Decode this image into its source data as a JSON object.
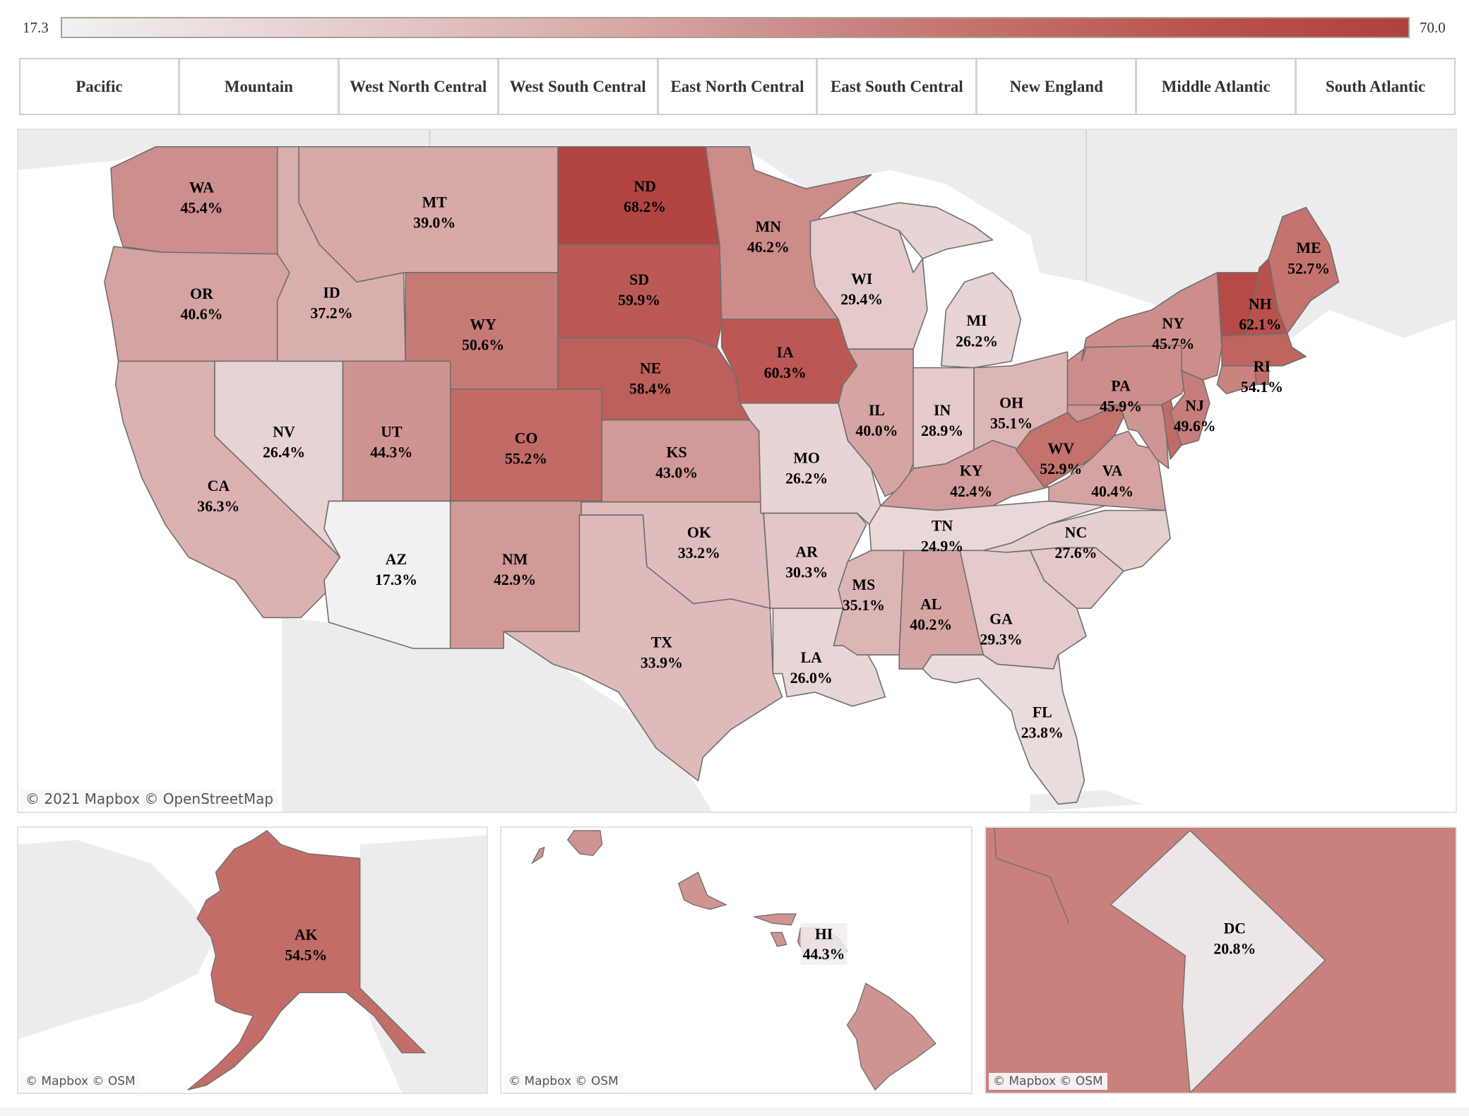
{
  "legend": {
    "min_label": "17.3",
    "max_label": "70.0",
    "min_value": 17.3,
    "max_value": 70.0,
    "color_low": "#f1f1f1",
    "color_high": "#b0413e"
  },
  "tabs": [
    {
      "label": "Pacific"
    },
    {
      "label": "Mountain"
    },
    {
      "label": "West North Central"
    },
    {
      "label": "West South Central"
    },
    {
      "label": "East North Central"
    },
    {
      "label": "East South Central"
    },
    {
      "label": "New England"
    },
    {
      "label": "Middle Atlantic"
    },
    {
      "label": "South Atlantic"
    }
  ],
  "main_map": {
    "attribution": "© 2021 Mapbox  © OpenStreetMap"
  },
  "inset_maps": {
    "alaska": {
      "attribution": "© Mapbox  © OSM"
    },
    "hawaii": {
      "attribution": "© Mapbox  © OSM"
    },
    "dc": {
      "attribution": "© Mapbox  © OSM"
    }
  },
  "chart_data": {
    "type": "choropleth",
    "title": "",
    "value_format": "percent",
    "scale": {
      "min": 17.3,
      "max": 70.0
    },
    "states": [
      {
        "code": "WA",
        "value": 45.4,
        "label": "45.4%"
      },
      {
        "code": "OR",
        "value": 40.6,
        "label": "40.6%"
      },
      {
        "code": "CA",
        "value": 36.3,
        "label": "36.3%"
      },
      {
        "code": "ID",
        "value": 37.2,
        "label": "37.2%"
      },
      {
        "code": "NV",
        "value": 26.4,
        "label": "26.4%"
      },
      {
        "code": "MT",
        "value": 39.0,
        "label": "39.0%"
      },
      {
        "code": "WY",
        "value": 50.6,
        "label": "50.6%"
      },
      {
        "code": "UT",
        "value": 44.3,
        "label": "44.3%"
      },
      {
        "code": "AZ",
        "value": 17.3,
        "label": "17.3%"
      },
      {
        "code": "CO",
        "value": 55.2,
        "label": "55.2%"
      },
      {
        "code": "NM",
        "value": 42.9,
        "label": "42.9%"
      },
      {
        "code": "ND",
        "value": 68.2,
        "label": "68.2%"
      },
      {
        "code": "SD",
        "value": 59.9,
        "label": "59.9%"
      },
      {
        "code": "NE",
        "value": 58.4,
        "label": "58.4%"
      },
      {
        "code": "KS",
        "value": 43.0,
        "label": "43.0%"
      },
      {
        "code": "OK",
        "value": 33.2,
        "label": "33.2%"
      },
      {
        "code": "TX",
        "value": 33.9,
        "label": "33.9%"
      },
      {
        "code": "MN",
        "value": 46.2,
        "label": "46.2%"
      },
      {
        "code": "IA",
        "value": 60.3,
        "label": "60.3%"
      },
      {
        "code": "MO",
        "value": 26.2,
        "label": "26.2%"
      },
      {
        "code": "AR",
        "value": 30.3,
        "label": "30.3%"
      },
      {
        "code": "LA",
        "value": 26.0,
        "label": "26.0%"
      },
      {
        "code": "WI",
        "value": 29.4,
        "label": "29.4%"
      },
      {
        "code": "IL",
        "value": 40.0,
        "label": "40.0%"
      },
      {
        "code": "MI",
        "value": 26.2,
        "label": "26.2%"
      },
      {
        "code": "IN",
        "value": 28.9,
        "label": "28.9%"
      },
      {
        "code": "OH",
        "value": 35.1,
        "label": "35.1%"
      },
      {
        "code": "KY",
        "value": 42.4,
        "label": "42.4%"
      },
      {
        "code": "TN",
        "value": 24.9,
        "label": "24.9%"
      },
      {
        "code": "MS",
        "value": 35.1,
        "label": "35.1%"
      },
      {
        "code": "AL",
        "value": 40.2,
        "label": "40.2%"
      },
      {
        "code": "GA",
        "value": 29.3,
        "label": "29.3%"
      },
      {
        "code": "FL",
        "value": 23.8,
        "label": "23.8%"
      },
      {
        "code": "NC",
        "value": 27.6,
        "label": "27.6%"
      },
      {
        "code": "VA",
        "value": 40.4,
        "label": "40.4%"
      },
      {
        "code": "WV",
        "value": 52.9,
        "label": "52.9%"
      },
      {
        "code": "PA",
        "value": 45.9,
        "label": "45.9%"
      },
      {
        "code": "NY",
        "value": 45.7,
        "label": "45.7%"
      },
      {
        "code": "NJ",
        "value": 49.6,
        "label": "49.6%"
      },
      {
        "code": "NH",
        "value": 62.1,
        "label": "62.1%"
      },
      {
        "code": "ME",
        "value": 52.7,
        "label": "52.7%"
      },
      {
        "code": "RI",
        "value": 54.1,
        "label": "54.1%"
      },
      {
        "code": "AK",
        "value": 54.5,
        "label": "54.5%"
      },
      {
        "code": "HI",
        "value": 44.3,
        "label": "44.3%"
      },
      {
        "code": "DC",
        "value": 20.8,
        "label": "20.8%"
      }
    ]
  }
}
